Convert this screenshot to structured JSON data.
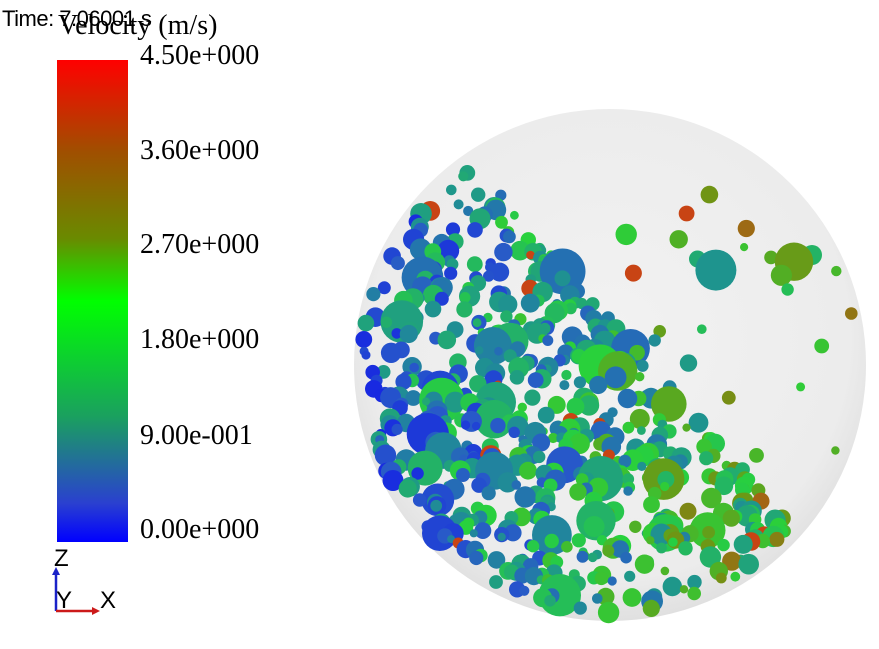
{
  "time_label": "Time: 7.06001 s",
  "legend": {
    "title": "Velocity (m/s)",
    "ticks": [
      "4.50e+000",
      "3.60e+000",
      "2.70e+000",
      "1.80e+000",
      "9.00e-001",
      "0.00e+000"
    ]
  },
  "axes": {
    "z": "Z",
    "y": "Y",
    "x": "X"
  },
  "colors": {
    "low": "#0000ff",
    "mid": "#00ff00",
    "high": "#ff0000",
    "sphere": "#ebebeb"
  }
}
